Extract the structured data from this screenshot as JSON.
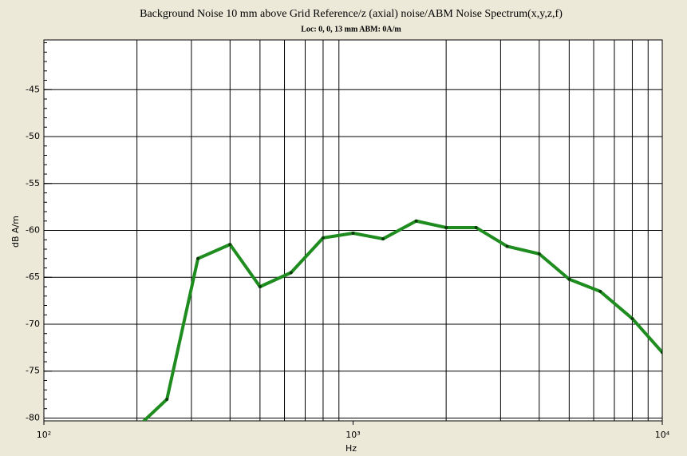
{
  "chart_data": {
    "type": "line",
    "title": "Background Noise 10 mm above Grid Reference/z (axial) noise/ABM Noise Spectrum(x,y,z,f)",
    "subtitle": "Loc: 0, 0, 13 mm ABM: 0A/m",
    "x_label": "Hz",
    "y_label": "dB A/m",
    "x": [
      200,
      250,
      315,
      400,
      500,
      630,
      800,
      1000,
      1250,
      1600,
      2000,
      2500,
      3150,
      4000,
      5000,
      6300,
      8000,
      10000
    ],
    "series": [
      {
        "name": "z (axial) noise",
        "color": "#1e8c1e",
        "values": [
          -81,
          -78,
          -63,
          -61.5,
          -66,
          -64.5,
          -60.8,
          -60.3,
          -60.9,
          -59,
          -59.7,
          -59.7,
          -61.7,
          -62.5,
          -65.2,
          -66.5,
          -69.4,
          -73
        ]
      }
    ],
    "xscale": "log",
    "xlim": [
      100,
      10000
    ],
    "xticks": [
      {
        "value": 100,
        "label": "10²"
      },
      {
        "value": 1000,
        "label": "10³"
      },
      {
        "value": 10000,
        "label": "10⁴"
      }
    ],
    "ylim": [
      -80.3,
      -39.7
    ],
    "yticks": [
      -80,
      -75,
      -70,
      -65,
      -60,
      -55,
      -50,
      -45
    ],
    "grid": true
  }
}
